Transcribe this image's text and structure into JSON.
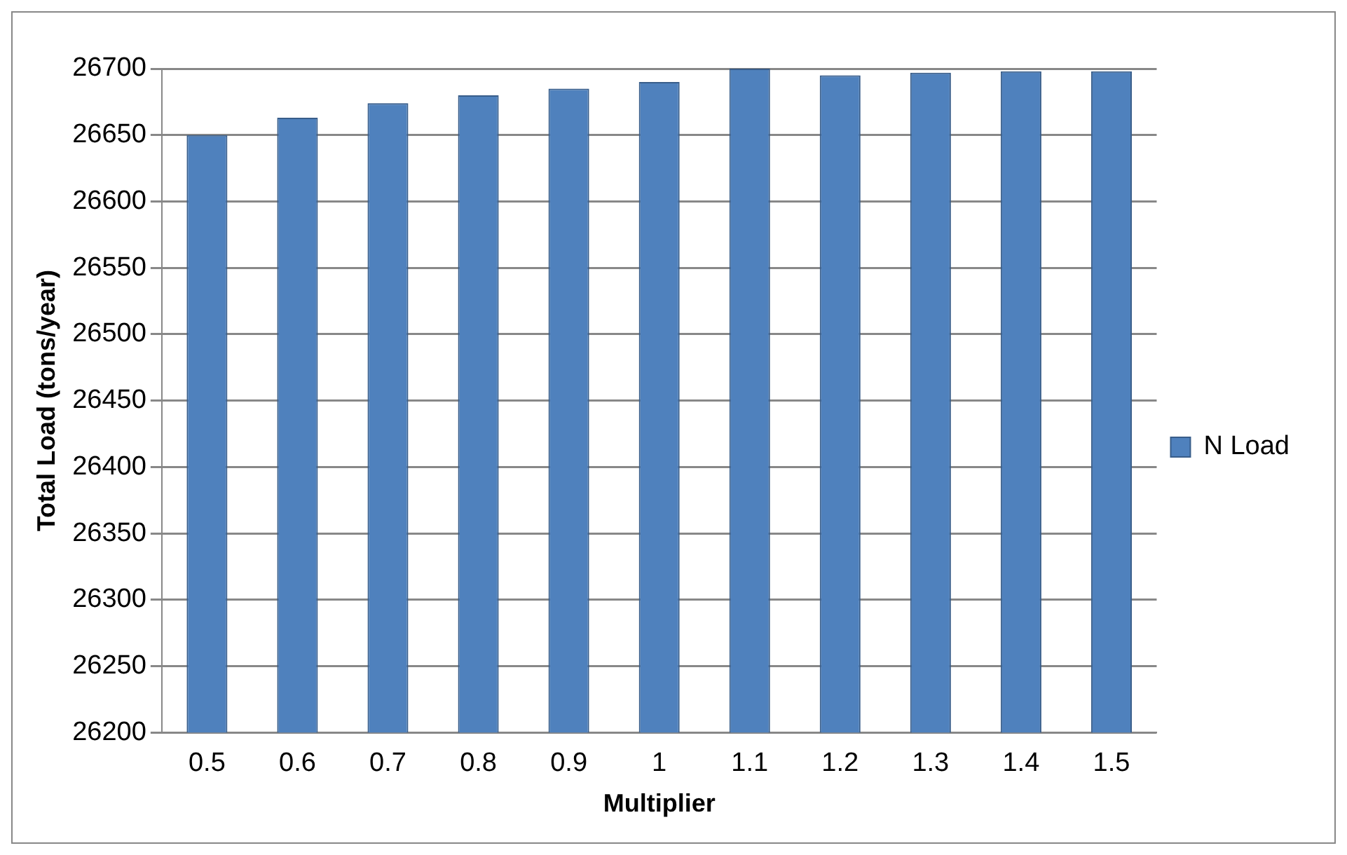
{
  "chart_data": {
    "type": "bar",
    "xlabel": "Multiplier",
    "ylabel": "Total Load (tons/year)",
    "categories": [
      "0.5",
      "0.6",
      "0.7",
      "0.8",
      "0.9",
      "1",
      "1.1",
      "1.2",
      "1.3",
      "1.4",
      "1.5"
    ],
    "series": [
      {
        "name": "N Load",
        "color": "#4f81bd",
        "values": [
          26650,
          26663,
          26674,
          26680,
          26685,
          26690,
          26700,
          26695,
          26697,
          26698,
          26698
        ]
      }
    ],
    "ylim": [
      26200,
      26700
    ],
    "yticks": [
      26200,
      26250,
      26300,
      26350,
      26400,
      26450,
      26500,
      26550,
      26600,
      26650,
      26700
    ],
    "grid": "y",
    "legend": "right"
  }
}
